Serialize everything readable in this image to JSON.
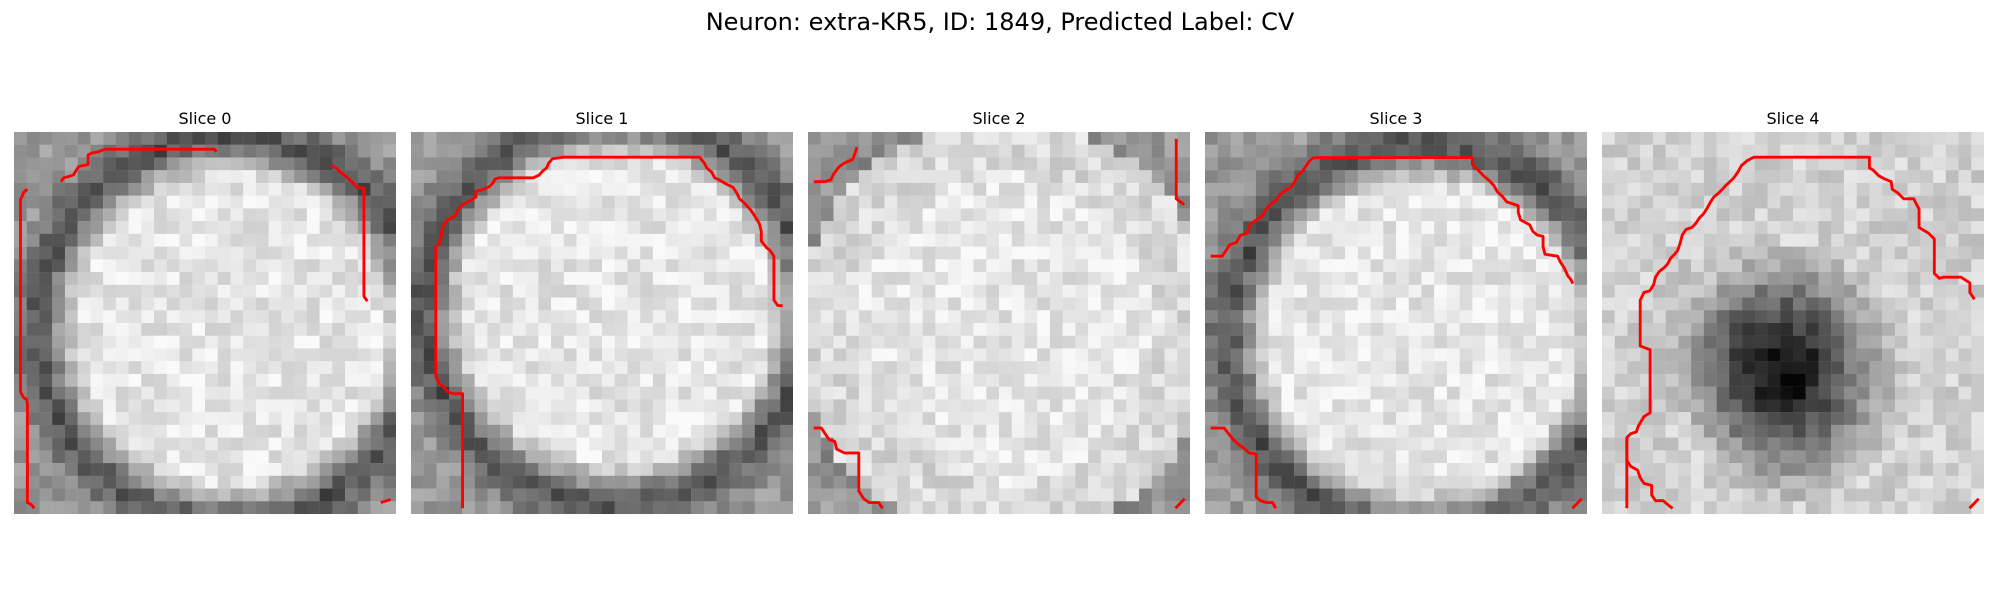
{
  "figure": {
    "title": "Neuron: extra-KR5, ID: 1849, Predicted Label: CV"
  },
  "contour_color": "#ff0000",
  "panels": [
    {
      "title": "Slice 0",
      "background": "bright round cell body centered, dark membrane ring on left and bottom",
      "contour_points": [
        [
          3.5,
          15
        ],
        [
          2.5,
          15.8
        ],
        [
          2.2,
          16.6
        ],
        [
          1.7,
          17.7
        ],
        [
          1.7,
          20
        ],
        [
          1.7,
          22
        ],
        [
          1.7,
          26
        ],
        [
          1.7,
          31
        ],
        [
          1.7,
          38
        ],
        [
          1.7,
          50
        ],
        [
          1.7,
          60
        ],
        [
          1.7,
          68
        ],
        [
          2.5,
          69.5
        ],
        [
          3.3,
          70
        ],
        [
          3.5,
          71
        ],
        [
          3.5,
          75
        ],
        [
          3.5,
          80
        ],
        [
          3.5,
          88
        ],
        [
          3.5,
          95
        ],
        [
          3.5,
          97
        ],
        [
          4.5,
          97.5
        ],
        [
          5.3,
          98.5
        ]
      ],
      "contour_points_top": [
        [
          12.3,
          13
        ],
        [
          13,
          12
        ],
        [
          14.5,
          11.6
        ],
        [
          15.6,
          11.2
        ],
        [
          16.3,
          10
        ],
        [
          17,
          9
        ],
        [
          18,
          8.8
        ],
        [
          19.4,
          8.5
        ],
        [
          19.4,
          6
        ],
        [
          20.4,
          5.5
        ],
        [
          22,
          5.2
        ],
        [
          23,
          4.8
        ],
        [
          24,
          4.5
        ],
        [
          26.6,
          4.5
        ],
        [
          30,
          4.5
        ],
        [
          35,
          4.5
        ],
        [
          40,
          4.5
        ],
        [
          45,
          4.5
        ],
        [
          50,
          4.5
        ],
        [
          52.5,
          4.5
        ],
        [
          53,
          5.2
        ]
      ],
      "contour_points_right": [
        [
          83,
          8.7
        ],
        [
          84.5,
          9.5
        ],
        [
          85.5,
          10.6
        ],
        [
          86.8,
          11.5
        ],
        [
          88.8,
          13.4
        ],
        [
          89.8,
          14.5
        ],
        [
          91.6,
          14.7
        ],
        [
          91.6,
          17
        ],
        [
          91.6,
          30
        ],
        [
          91.6,
          40
        ],
        [
          91.6,
          43
        ],
        [
          92.5,
          44.3
        ]
      ],
      "corner_mark": [
        [
          96,
          97
        ],
        [
          98.6,
          96.2
        ]
      ]
    },
    {
      "title": "Slice 1",
      "background": "bright round cell body, dark membrane ring around, white edges at top",
      "contour_points": [
        [
          8,
          26
        ],
        [
          7.8,
          28
        ],
        [
          7.2,
          29.5
        ],
        [
          6.5,
          30
        ],
        [
          6.5,
          35
        ],
        [
          6.5,
          45
        ],
        [
          6.5,
          55
        ],
        [
          6.5,
          64
        ],
        [
          7.5,
          66
        ],
        [
          8.5,
          66.7
        ],
        [
          9.6,
          68
        ],
        [
          11,
          68.5
        ],
        [
          13.5,
          68.5
        ],
        [
          13.5,
          72
        ],
        [
          13.5,
          80
        ],
        [
          13.5,
          90
        ],
        [
          13.5,
          98.5
        ]
      ],
      "contour_points_top": [
        [
          8,
          26
        ],
        [
          8.5,
          24.5
        ],
        [
          9.5,
          23
        ],
        [
          11.5,
          22
        ],
        [
          12,
          21
        ],
        [
          12.5,
          20
        ],
        [
          13.5,
          19
        ],
        [
          15.5,
          18
        ],
        [
          17,
          17
        ],
        [
          17,
          15.5
        ],
        [
          19,
          15
        ],
        [
          20.5,
          14.3
        ],
        [
          21.5,
          13.3
        ],
        [
          22,
          12.3
        ],
        [
          23,
          12
        ],
        [
          26,
          12
        ],
        [
          32,
          12
        ],
        [
          33.5,
          11.3
        ],
        [
          34.5,
          10.2
        ],
        [
          35.5,
          9.4
        ],
        [
          36,
          8.2
        ],
        [
          37,
          7
        ],
        [
          40,
          6.6
        ],
        [
          50,
          6.6
        ],
        [
          60,
          6.6
        ],
        [
          70,
          6.6
        ],
        [
          75.5,
          6.6
        ],
        [
          76.7,
          8
        ],
        [
          77.5,
          9.5
        ],
        [
          78.7,
          10.5
        ],
        [
          79.5,
          12
        ],
        [
          80.6,
          12.5
        ],
        [
          82.5,
          13.6
        ],
        [
          84.3,
          14.5
        ],
        [
          85.3,
          16
        ],
        [
          86,
          17.5
        ],
        [
          87.2,
          18.5
        ],
        [
          89,
          20.5
        ],
        [
          90,
          22
        ],
        [
          91.2,
          24
        ],
        [
          91.7,
          26
        ],
        [
          91.7,
          28.5
        ],
        [
          93,
          30.2
        ],
        [
          94,
          31
        ],
        [
          95,
          32.5
        ],
        [
          95,
          44
        ],
        [
          96,
          45.4
        ],
        [
          97.3,
          45.5
        ]
      ]
    },
    {
      "title": "Slice 2",
      "background": "bright noisy cell body filling frame, dark corners",
      "contour_points": [
        [
          1.5,
          13
        ],
        [
          4.5,
          13
        ],
        [
          6,
          12.5
        ],
        [
          6.6,
          11.2
        ],
        [
          7.8,
          9.5
        ],
        [
          8.5,
          8.8
        ],
        [
          9.8,
          8
        ],
        [
          11.7,
          7.2
        ],
        [
          12.4,
          5.3
        ],
        [
          12.8,
          4
        ]
      ],
      "contour_points_right": [
        [
          96.4,
          1.8
        ],
        [
          96.4,
          17.5
        ],
        [
          98.5,
          19
        ]
      ],
      "contour_points_bottom": [
        [
          1.5,
          77.5
        ],
        [
          3.5,
          77.5
        ],
        [
          4.5,
          79
        ],
        [
          5.5,
          80.5
        ],
        [
          7,
          81
        ],
        [
          7.5,
          83
        ],
        [
          9.5,
          84
        ],
        [
          13.3,
          84
        ],
        [
          13.3,
          90
        ],
        [
          13.3,
          94
        ],
        [
          14.6,
          96
        ],
        [
          16,
          97
        ],
        [
          18.5,
          97
        ],
        [
          19.5,
          98.5
        ]
      ],
      "corner_mark": [
        [
          96.2,
          98.5
        ],
        [
          98.6,
          96
        ]
      ]
    },
    {
      "title": "Slice 3",
      "background": "bright round cell body, dark membrane ring on upper left and lower left",
      "contour_points": [
        [
          1.5,
          32.5
        ],
        [
          4.5,
          32.5
        ],
        [
          5.5,
          31
        ],
        [
          6.5,
          29.5
        ],
        [
          8.2,
          28.9
        ],
        [
          9.3,
          27
        ],
        [
          11,
          26.5
        ],
        [
          11.4,
          25.3
        ],
        [
          12,
          24
        ],
        [
          13.5,
          23
        ],
        [
          15,
          22
        ],
        [
          15.8,
          20.5
        ],
        [
          17,
          19
        ],
        [
          18.5,
          18
        ],
        [
          19.5,
          16.5
        ],
        [
          21,
          15.3
        ],
        [
          22.5,
          14.5
        ],
        [
          23.5,
          13
        ],
        [
          24.3,
          11.3
        ],
        [
          25.5,
          10.3
        ],
        [
          26.5,
          8.8
        ],
        [
          27.3,
          7.6
        ],
        [
          28.3,
          6.8
        ],
        [
          30,
          6.7
        ],
        [
          40,
          6.7
        ],
        [
          50,
          6.7
        ],
        [
          60,
          6.7
        ],
        [
          70,
          6.7
        ],
        [
          70,
          8.5
        ],
        [
          71.5,
          10
        ],
        [
          73.3,
          11.8
        ],
        [
          74.5,
          12.8
        ],
        [
          75.6,
          14
        ],
        [
          76.5,
          15.6
        ],
        [
          77.8,
          16.8
        ],
        [
          79,
          18.3
        ],
        [
          82,
          19.3
        ],
        [
          82,
          21
        ],
        [
          82.6,
          23
        ],
        [
          85,
          24.3
        ],
        [
          85.8,
          26
        ],
        [
          87,
          27
        ],
        [
          88.5,
          27.3
        ],
        [
          88.5,
          30
        ],
        [
          89,
          32
        ],
        [
          92.3,
          32.5
        ],
        [
          93,
          34
        ],
        [
          94,
          35.5
        ],
        [
          95,
          37.7
        ],
        [
          95.7,
          38.5
        ],
        [
          96.3,
          39.7
        ]
      ],
      "contour_points_bottom": [
        [
          1.5,
          77.5
        ],
        [
          5,
          77.5
        ],
        [
          6.4,
          79.3
        ],
        [
          7.5,
          80.6
        ],
        [
          9,
          82
        ],
        [
          10,
          82.6
        ],
        [
          11.5,
          84
        ],
        [
          13.4,
          84.3
        ],
        [
          13.4,
          88
        ],
        [
          13.4,
          95.5
        ],
        [
          14.5,
          96.5
        ],
        [
          16,
          97
        ],
        [
          17.7,
          97
        ],
        [
          18.5,
          98.5
        ]
      ],
      "corner_mark": [
        [
          96.2,
          98.5
        ],
        [
          98.6,
          96
        ]
      ]
    },
    {
      "title": "Slice 4",
      "background": "light noisy background with large dark blob in lower center",
      "contour_points": [
        [
          6.5,
          98.5
        ],
        [
          6.5,
          93
        ],
        [
          6.5,
          80
        ],
        [
          7.5,
          79
        ],
        [
          9,
          78.5
        ],
        [
          9.5,
          77
        ],
        [
          11,
          74.5
        ],
        [
          12.6,
          73.5
        ],
        [
          12.6,
          70
        ],
        [
          12.6,
          66
        ],
        [
          12.6,
          60
        ],
        [
          12.6,
          57
        ],
        [
          10,
          56
        ],
        [
          10,
          50
        ],
        [
          10,
          44
        ],
        [
          11,
          42
        ],
        [
          12.5,
          41.6
        ],
        [
          13.5,
          40
        ],
        [
          14,
          38
        ],
        [
          15,
          36.5
        ],
        [
          16.3,
          35.5
        ],
        [
          17.2,
          34.5
        ],
        [
          18,
          33
        ],
        [
          19,
          32
        ],
        [
          19.8,
          31
        ],
        [
          20.5,
          29
        ],
        [
          21,
          27
        ],
        [
          22,
          25.5
        ],
        [
          23.5,
          25
        ],
        [
          24.5,
          24
        ],
        [
          25.5,
          22.5
        ],
        [
          26.5,
          21.5
        ],
        [
          27.5,
          20
        ],
        [
          28.3,
          18.5
        ],
        [
          29.3,
          17
        ],
        [
          30.5,
          16
        ],
        [
          31.5,
          15
        ],
        [
          32.4,
          14
        ],
        [
          33.5,
          13
        ],
        [
          34.5,
          12
        ],
        [
          35.5,
          10.6
        ],
        [
          36.5,
          8.8
        ],
        [
          38,
          7.5
        ],
        [
          39.5,
          6.7
        ],
        [
          40,
          6.6
        ],
        [
          50,
          6.6
        ],
        [
          60,
          6.6
        ],
        [
          70,
          6.6
        ],
        [
          70,
          9.4
        ],
        [
          71,
          10
        ],
        [
          72.5,
          11.5
        ],
        [
          74,
          12.3
        ],
        [
          75.7,
          13
        ],
        [
          76,
          15
        ],
        [
          77.5,
          16
        ],
        [
          79,
          17.5
        ],
        [
          81.6,
          17.5
        ],
        [
          83,
          20.2
        ],
        [
          83,
          25
        ],
        [
          85.5,
          26.5
        ],
        [
          87,
          28
        ],
        [
          87,
          30
        ],
        [
          87,
          37
        ],
        [
          88.3,
          38.3
        ],
        [
          89.5,
          38
        ],
        [
          92,
          38
        ],
        [
          94,
          38
        ],
        [
          96.3,
          39.5
        ],
        [
          96.3,
          42
        ],
        [
          97.5,
          43.8
        ]
      ],
      "contour_points_bottom": [
        [
          6.5,
          80
        ],
        [
          6.5,
          86
        ],
        [
          7.5,
          87.5
        ],
        [
          9.3,
          88.5
        ],
        [
          10,
          90.5
        ],
        [
          11,
          92
        ],
        [
          13,
          92.5
        ],
        [
          13,
          95
        ],
        [
          14,
          96.5
        ],
        [
          16,
          96.5
        ],
        [
          17.5,
          97.8
        ],
        [
          18.5,
          98.5
        ]
      ],
      "corner_mark": [
        [
          96.2,
          98.5
        ],
        [
          98.6,
          96
        ]
      ]
    }
  ]
}
